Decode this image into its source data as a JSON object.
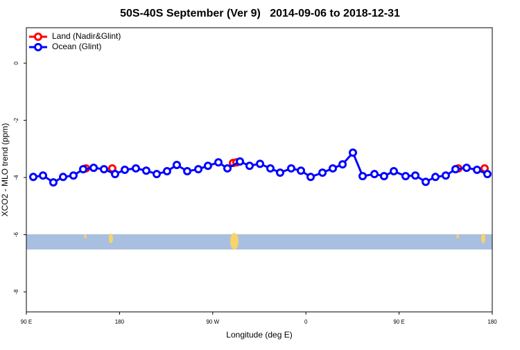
{
  "chart_data": {
    "type": "line",
    "title": "50S-40S September (Ver 9)   2014-09-06 to 2018-12-31",
    "xlabel": "Longitude (deg E)",
    "ylabel": "XCO2 - MLO trend (ppm)",
    "xlim": [
      90,
      540
    ],
    "ylim": [
      -8.7,
      1.24
    ],
    "xticks": [
      {
        "value": 90,
        "label": "90 E"
      },
      {
        "value": 180,
        "label": "180"
      },
      {
        "value": 270,
        "label": "90 W"
      },
      {
        "value": 360,
        "label": "0"
      },
      {
        "value": 450,
        "label": "90 E"
      },
      {
        "value": 540,
        "label": "180"
      }
    ],
    "yticks": [
      0,
      -2,
      -4,
      -6,
      -8
    ],
    "legend": "top-left",
    "series": [
      {
        "name": "Land (Nadir&Glint)",
        "color": "#ff0000",
        "x": [
          147.6,
          null,
          173.0,
          null,
          289.6,
          292.9,
          null,
          507.2,
          null,
          532.6
        ],
        "values": [
          -3.68,
          null,
          -3.68,
          null,
          -3.49,
          -3.47,
          null,
          -3.68,
          null,
          -3.68
        ]
      },
      {
        "name": "Ocean (Glint)",
        "color": "#0000ff",
        "x": [
          96.7,
          106.1,
          116.1,
          125.5,
          135.5,
          144.9,
          155.0,
          165.0,
          175.7,
          185.1,
          195.8,
          205.8,
          215.9,
          225.9,
          235.3,
          245.4,
          256.1,
          265.4,
          275.5,
          284.2,
          296.3,
          305.6,
          315.7,
          325.7,
          335.1,
          345.8,
          355.2,
          364.6,
          376.0,
          386.0,
          395.4,
          405.4,
          414.8,
          426.2,
          435.5,
          444.9,
          456.3,
          465.7,
          475.7,
          485.1,
          495.1,
          504.5,
          515.2,
          525.3,
          535.3
        ],
        "values": [
          -3.98,
          -3.93,
          -4.17,
          -3.98,
          -3.93,
          -3.71,
          -3.66,
          -3.71,
          -3.88,
          -3.73,
          -3.68,
          -3.76,
          -3.88,
          -3.78,
          -3.56,
          -3.78,
          -3.71,
          -3.59,
          -3.47,
          -3.68,
          -3.44,
          -3.59,
          -3.52,
          -3.68,
          -3.83,
          -3.68,
          -3.76,
          -3.98,
          -3.83,
          -3.68,
          -3.54,
          -3.13,
          -3.95,
          -3.88,
          -3.95,
          -3.78,
          -3.95,
          -3.93,
          -4.15,
          -3.98,
          -3.93,
          -3.71,
          -3.66,
          -3.73,
          -3.88
        ]
      }
    ]
  }
}
